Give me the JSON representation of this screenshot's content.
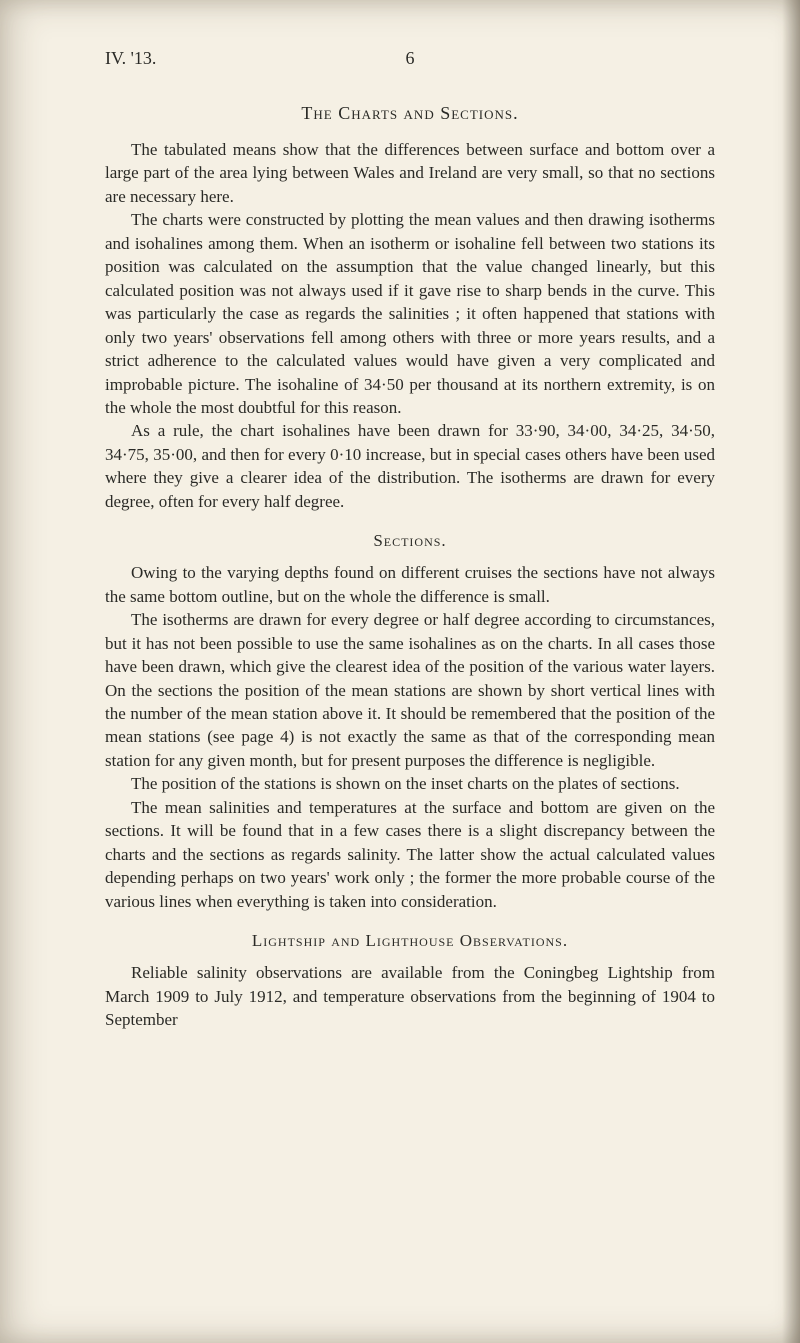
{
  "page": {
    "header_left": "IV. '13.",
    "page_number": "6"
  },
  "colors": {
    "paper_bg": "#f5f0e4",
    "text": "#2a2a26"
  },
  "typography": {
    "body_fontsize_pt": 13,
    "title_fontsize_pt": 13,
    "font_family": "Times New Roman serif"
  },
  "sections": {
    "title1": "The Charts and Sections.",
    "para1": "The tabulated means show that the differences between surface and bottom over a large part of the area lying between Wales and Ireland are very small, so that no sections are necessary here.",
    "para2": "The charts were constructed by plotting the mean values and then drawing isotherms and isohalines among them. When an isotherm or isohaline fell between two stations its position was calculated on the assumption that the value changed linearly, but this calculated position was not always used if it gave rise to sharp bends in the curve. This was particularly the case as regards the salinities ; it often happened that stations with only two years' observations fell among others with three or more years results, and a strict adherence to the calculated values would have given a very complicated and improbable picture. The isohaline of 34·50 per thousand at its northern extremity, is on the whole the most doubtful for this reason.",
    "para3": "As a rule, the chart isohalines have been drawn for 33·90, 34·00, 34·25, 34·50, 34·75, 35·00, and then for every 0·10 increase, but in special cases others have been used where they give a clearer idea of the distribution. The isotherms are drawn for every degree, often for every half degree.",
    "title2": "Sections.",
    "para4": "Owing to the varying depths found on different cruises the sections have not always the same bottom outline, but on the whole the difference is small.",
    "para5": "The isotherms are drawn for every degree or half degree according to circumstances, but it has not been possible to use the same isohalines as on the charts. In all cases those have been drawn, which give the clearest idea of the position of the various water layers. On the sections the position of the mean stations are shown by short vertical lines with the number of the mean station above it. It should be remembered that the position of the mean stations (see page 4) is not exactly the same as that of the corresponding mean station for any given month, but for present purposes the difference is negligible.",
    "para6": "The position of the stations is shown on the inset charts on the plates of sections.",
    "para7": "The mean salinities and temperatures at the surface and bottom are given on the sections. It will be found that in a few cases there is a slight discrepancy between the charts and the sections as regards salinity. The latter show the actual calculated values depending perhaps on two years' work only ; the former the more probable course of the various lines when everything is taken into consideration.",
    "title3": "Lightship and Lighthouse Observations.",
    "para8": "Reliable salinity observations are available from the Coningbeg Lightship from March 1909 to July 1912, and temperature observations from the beginning of 1904 to September"
  }
}
